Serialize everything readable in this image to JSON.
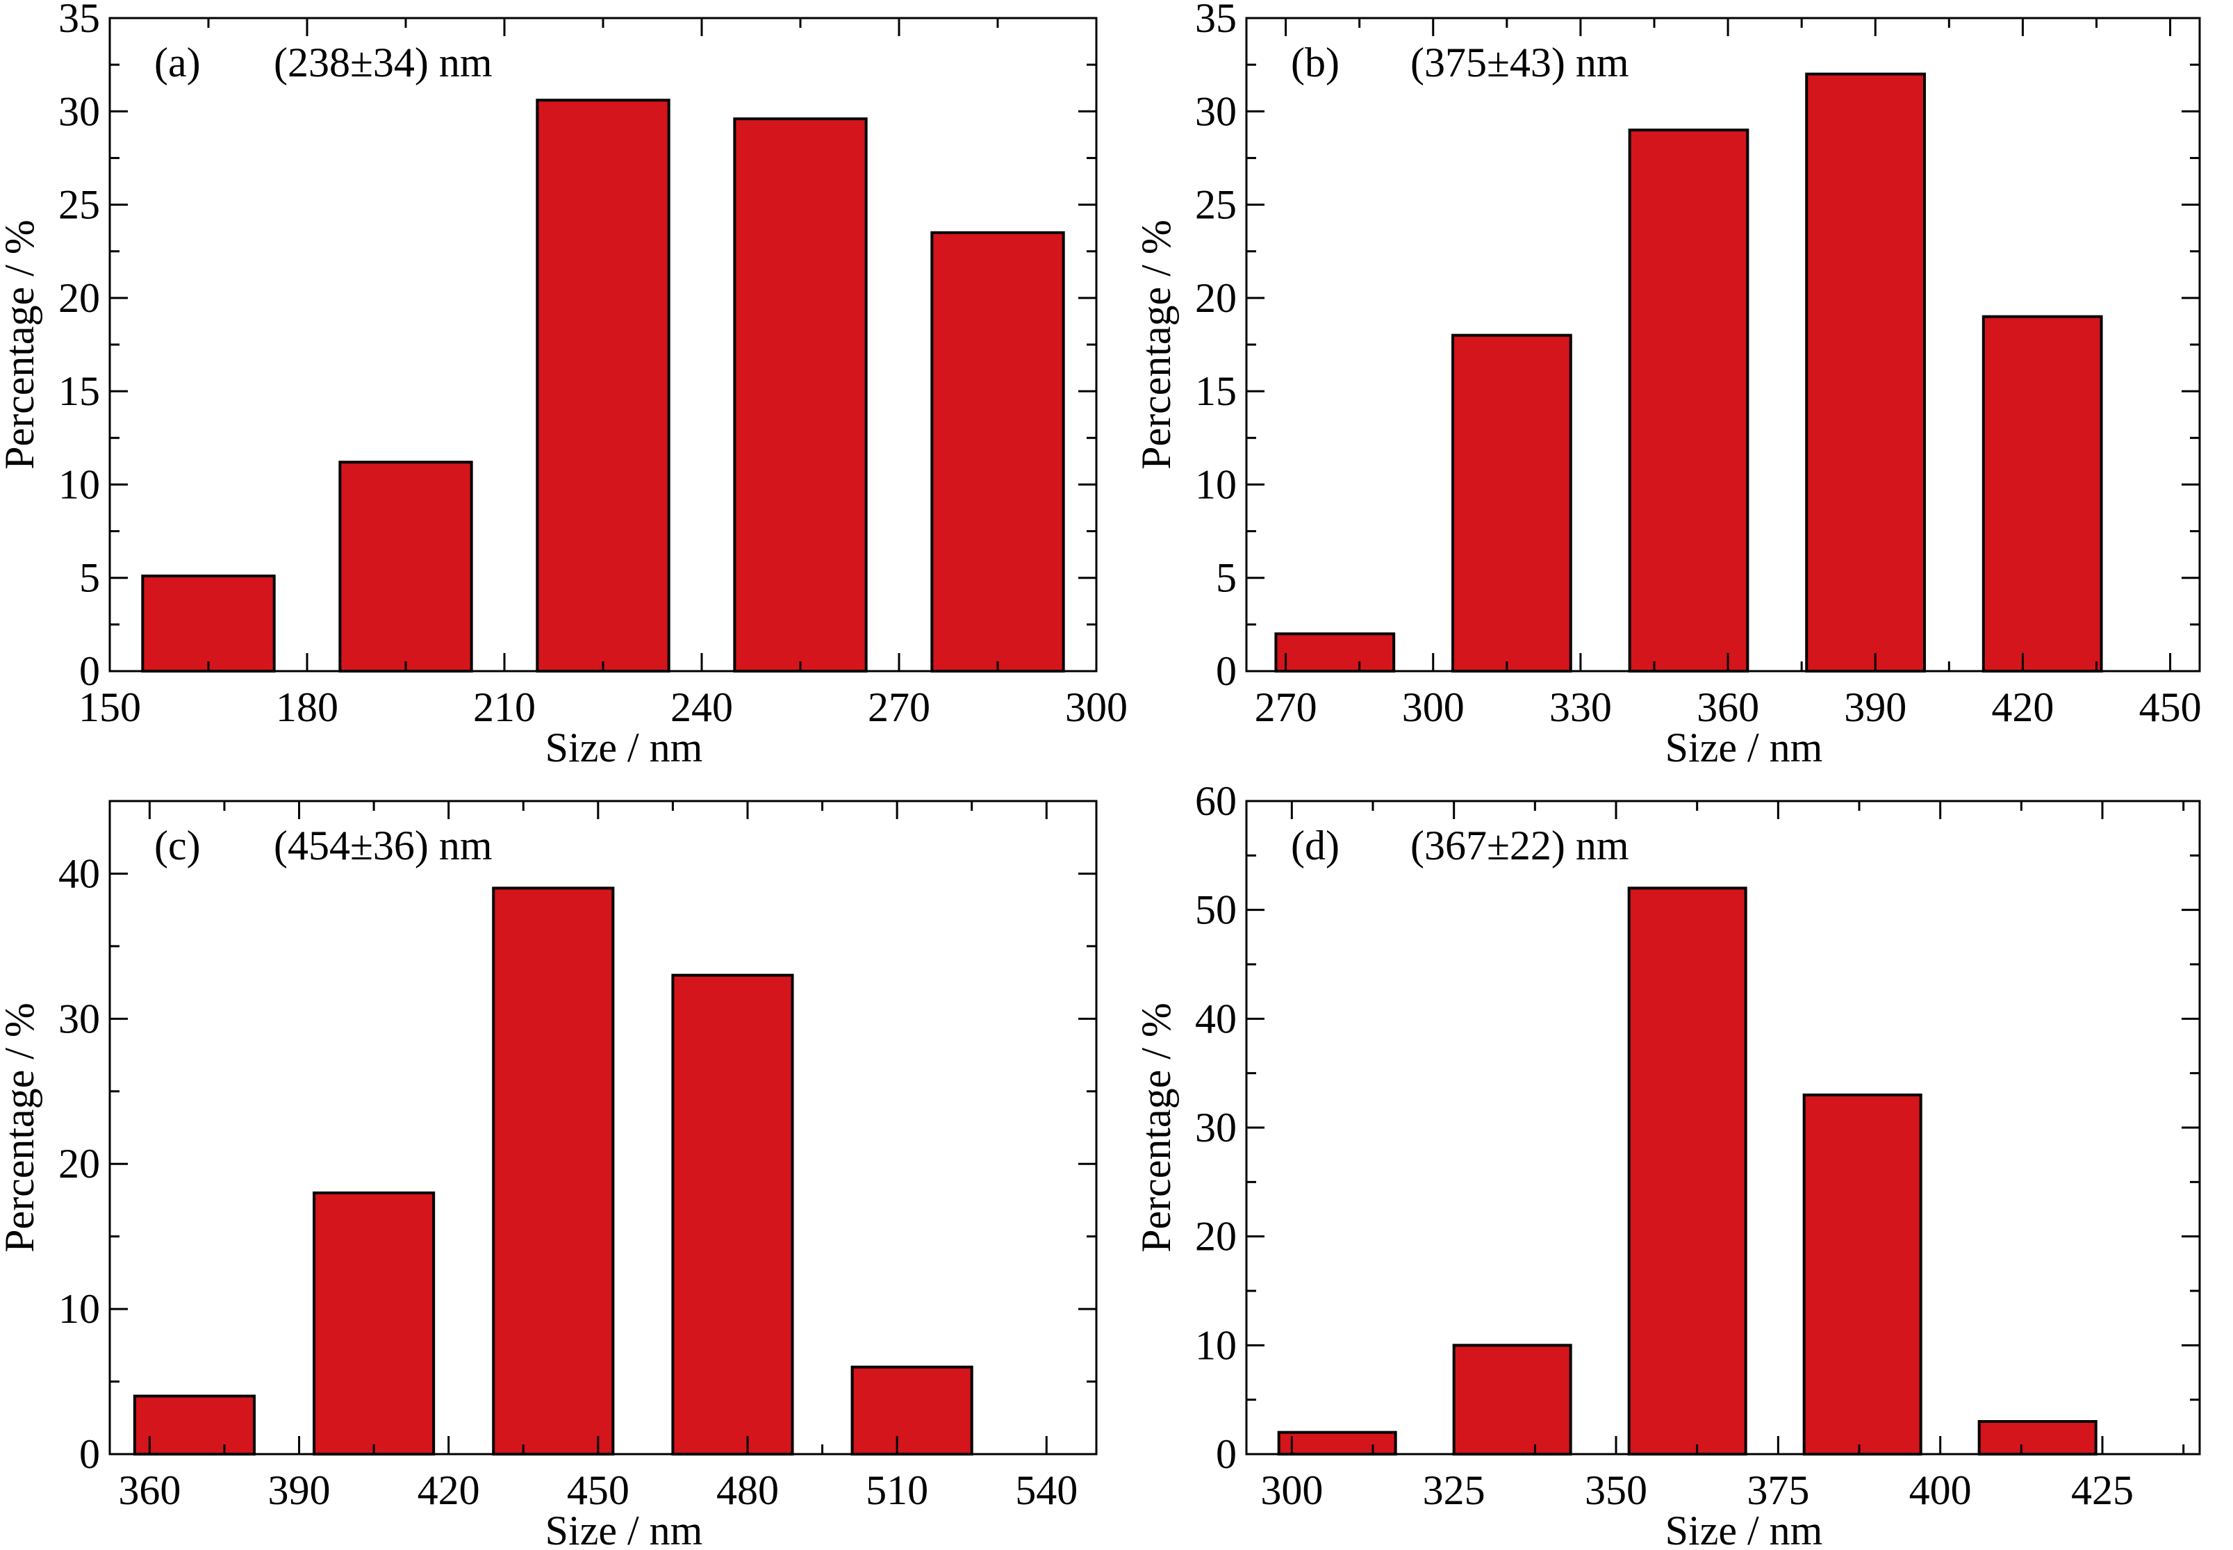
{
  "colors": {
    "bar_fill": "#d4151b",
    "bar_stroke": "#000000",
    "axis": "#000000"
  },
  "chart_data": [
    {
      "type": "bar",
      "panel": "(a)",
      "annotation": "(238±34) nm",
      "xlabel": "Size / nm",
      "ylabel": "Percentage / %",
      "xlim": [
        150,
        300
      ],
      "ylim": [
        0,
        35
      ],
      "xticks": [
        150,
        180,
        210,
        240,
        270,
        300
      ],
      "yticks": [
        0,
        5,
        10,
        15,
        20,
        25,
        30,
        35
      ],
      "bars": [
        {
          "start": 155,
          "end": 175,
          "value": 5.1
        },
        {
          "start": 185,
          "end": 205,
          "value": 11.2
        },
        {
          "start": 215,
          "end": 235,
          "value": 30.6
        },
        {
          "start": 245,
          "end": 265,
          "value": 29.6
        },
        {
          "start": 275,
          "end": 295,
          "value": 23.5
        }
      ]
    },
    {
      "type": "bar",
      "panel": "(b)",
      "annotation": "(375±43) nm",
      "xlabel": "Size / nm",
      "ylabel": "Percentage / %",
      "xlim": [
        262,
        456
      ],
      "ylim": [
        0,
        35
      ],
      "xticks": [
        270,
        300,
        330,
        360,
        390,
        420,
        450
      ],
      "yticks": [
        0,
        5,
        10,
        15,
        20,
        25,
        30,
        35
      ],
      "bars": [
        {
          "start": 268,
          "end": 292,
          "value": 2
        },
        {
          "start": 304,
          "end": 328,
          "value": 18
        },
        {
          "start": 340,
          "end": 364,
          "value": 29
        },
        {
          "start": 376,
          "end": 400,
          "value": 32
        },
        {
          "start": 412,
          "end": 436,
          "value": 19
        }
      ]
    },
    {
      "type": "bar",
      "panel": "(c)",
      "annotation": "(454±36) nm",
      "xlabel": "Size / nm",
      "ylabel": "Percentage / %",
      "xlim": [
        352,
        550
      ],
      "ylim": [
        0,
        45
      ],
      "xticks": [
        360,
        390,
        420,
        450,
        480,
        510,
        540
      ],
      "yticks": [
        0,
        10,
        20,
        30,
        40
      ],
      "bars": [
        {
          "start": 357,
          "end": 381,
          "value": 4
        },
        {
          "start": 393,
          "end": 417,
          "value": 18
        },
        {
          "start": 429,
          "end": 453,
          "value": 39
        },
        {
          "start": 465,
          "end": 489,
          "value": 33
        },
        {
          "start": 501,
          "end": 525,
          "value": 6
        }
      ]
    },
    {
      "type": "bar",
      "panel": "(d)",
      "annotation": "(367±22) nm",
      "xlabel": "Size / nm",
      "ylabel": "Percentage / %",
      "xlim": [
        293,
        440
      ],
      "ylim": [
        0,
        60
      ],
      "xticks": [
        300,
        325,
        350,
        375,
        400,
        425
      ],
      "yticks": [
        0,
        10,
        20,
        30,
        40,
        50,
        60
      ],
      "bars": [
        {
          "start": 298,
          "end": 316,
          "value": 2
        },
        {
          "start": 325,
          "end": 343,
          "value": 10
        },
        {
          "start": 352,
          "end": 370,
          "value": 52
        },
        {
          "start": 379,
          "end": 397,
          "value": 33
        },
        {
          "start": 406,
          "end": 424,
          "value": 3
        }
      ]
    }
  ]
}
